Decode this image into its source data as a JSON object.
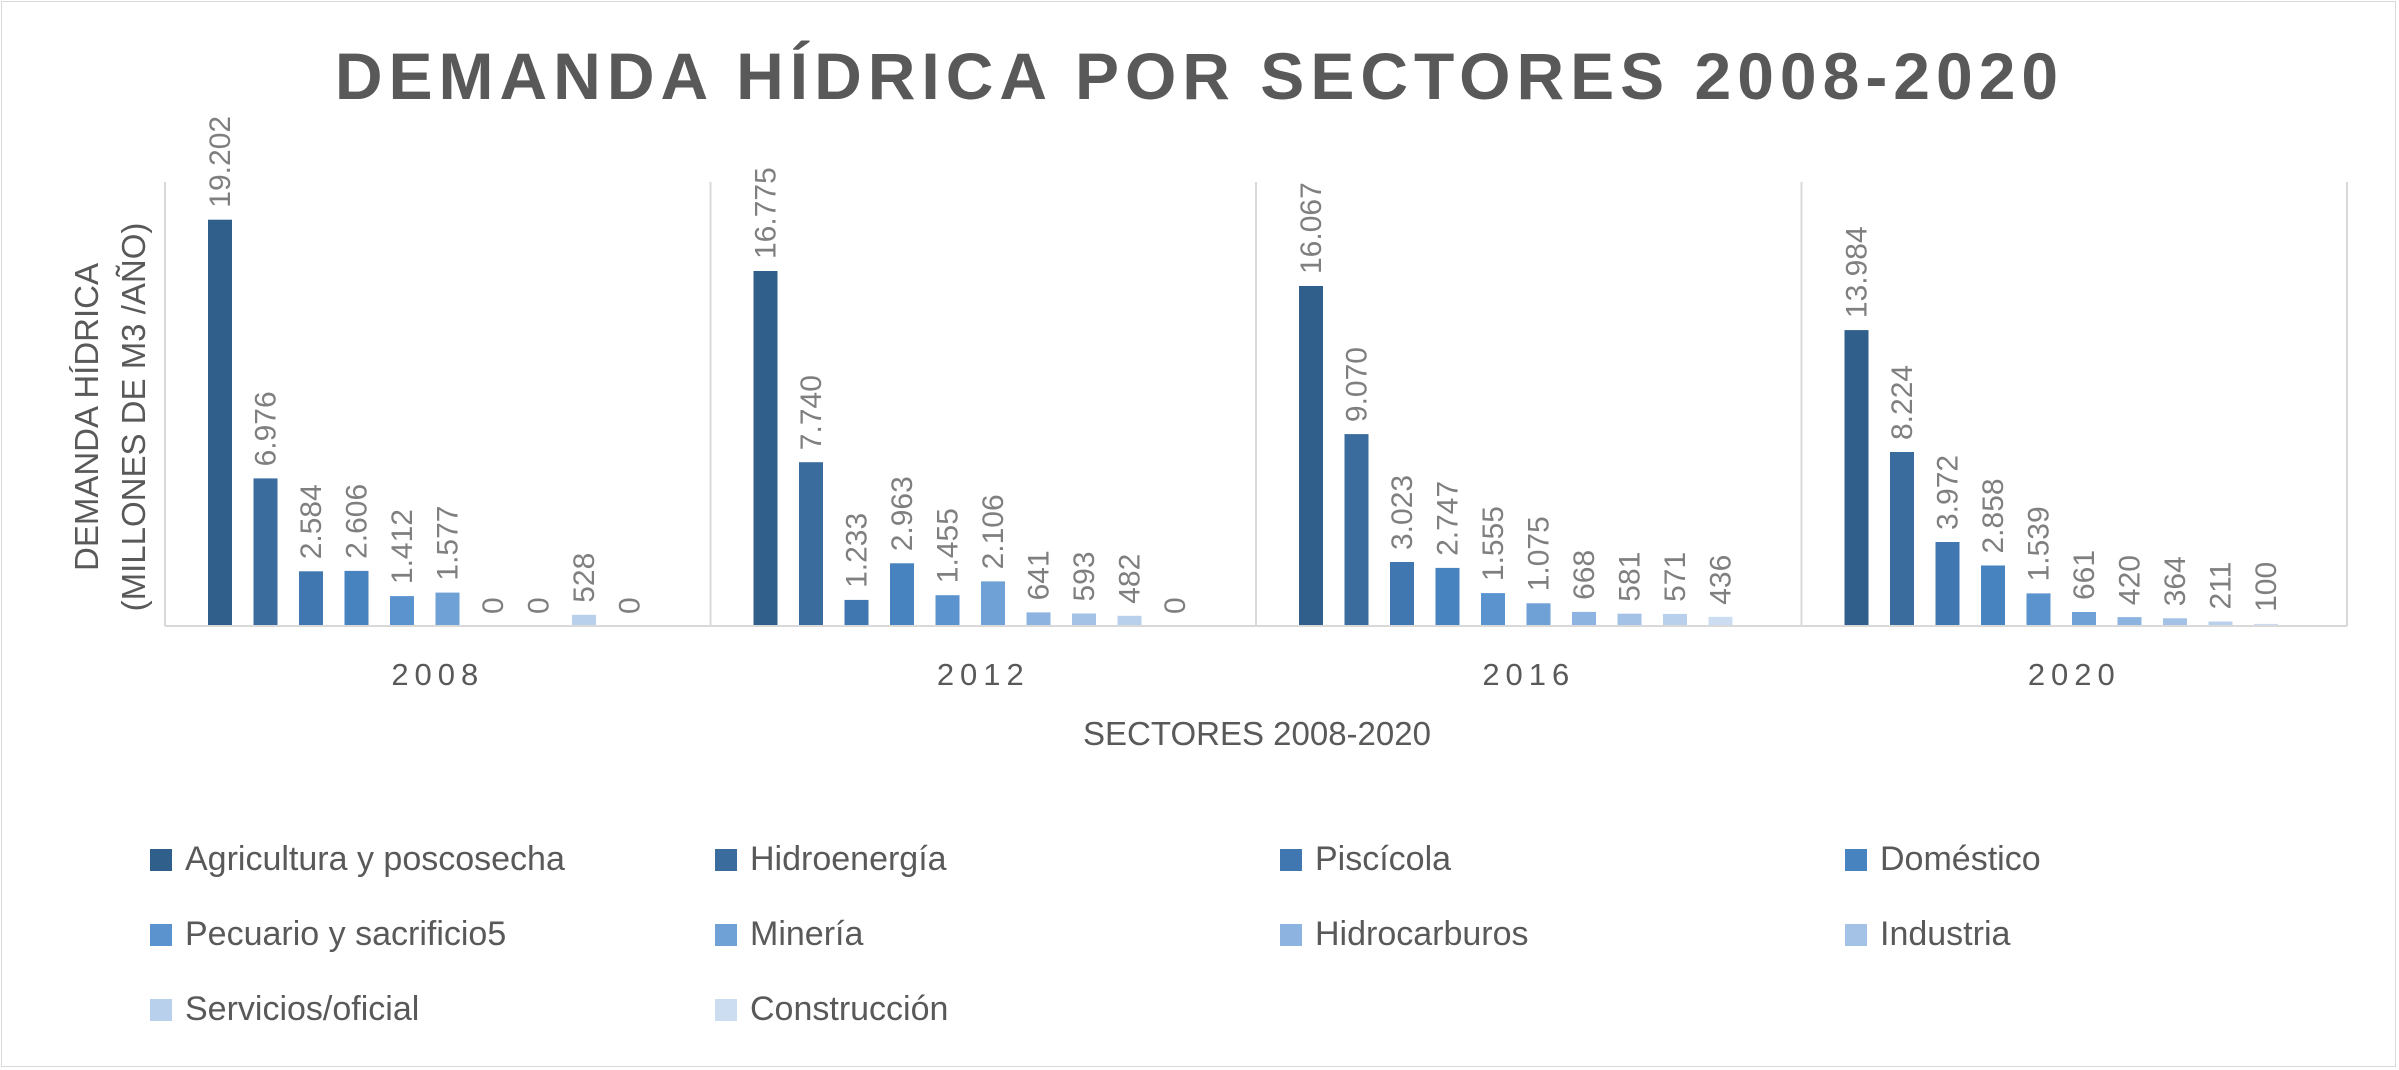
{
  "chart_data": {
    "type": "bar",
    "title": "DEMANDA HÍDRICA POR SECTORES 2008-2020",
    "ylabel_line1": "DEMANDA HÍDRICA",
    "ylabel_line2": "(MILLONES DE M3 /AÑO)",
    "xlabel": "SECTORES 2008-2020",
    "categories": [
      "2008",
      "2012",
      "2016",
      "2020"
    ],
    "ylim": [
      0,
      25000
    ],
    "grid": false,
    "legend_position": "bottom",
    "series": [
      {
        "name": "Agricultura y poscosecha",
        "color": "#2f5f8a",
        "values": [
          19202,
          16775,
          16067,
          13984
        ],
        "labels": [
          "19.202",
          "16.775",
          "16.067",
          "13.984"
        ]
      },
      {
        "name": "Hidroenergía",
        "color": "#3a6c9e",
        "values": [
          6976,
          7740,
          9070,
          8224
        ],
        "labels": [
          "6.976",
          "7.740",
          "9.070",
          "8.224"
        ]
      },
      {
        "name": "Piscícola",
        "color": "#4077b0",
        "values": [
          2584,
          1233,
          3023,
          3972
        ],
        "labels": [
          "2.584",
          "1.233",
          "3.023",
          "3.972"
        ]
      },
      {
        "name": "Doméstico",
        "color": "#4683bf",
        "values": [
          2606,
          2963,
          2747,
          2858
        ],
        "labels": [
          "2.606",
          "2.963",
          "2.747",
          "2.858"
        ]
      },
      {
        "name": "Pecuario y sacrificio5",
        "color": "#5b93cf",
        "values": [
          1412,
          1455,
          1555,
          1539
        ],
        "labels": [
          "1.412",
          "1.455",
          "1.555",
          "1.539"
        ]
      },
      {
        "name": "Minería",
        "color": "#6fa0d6",
        "values": [
          1577,
          2106,
          1075,
          661
        ],
        "labels": [
          "1.577",
          "2.106",
          "1.075",
          "661"
        ]
      },
      {
        "name": "Hidrocarburos",
        "color": "#8db4e0",
        "values": [
          0,
          641,
          668,
          420
        ],
        "labels": [
          "0",
          "641",
          "668",
          "420"
        ]
      },
      {
        "name": "Industria",
        "color": "#a3c2e6",
        "values": [
          0,
          593,
          581,
          364
        ],
        "labels": [
          "0",
          "593",
          "581",
          "364"
        ]
      },
      {
        "name": "Servicios/oficial",
        "color": "#b9d0ec",
        "values": [
          528,
          482,
          571,
          211
        ],
        "labels": [
          "528",
          "482",
          "571",
          "211"
        ]
      },
      {
        "name": "Construcción",
        "color": "#cdddf1",
        "values": [
          0,
          0,
          436,
          100
        ],
        "labels": [
          "0",
          "0",
          "436",
          "100"
        ]
      }
    ]
  }
}
